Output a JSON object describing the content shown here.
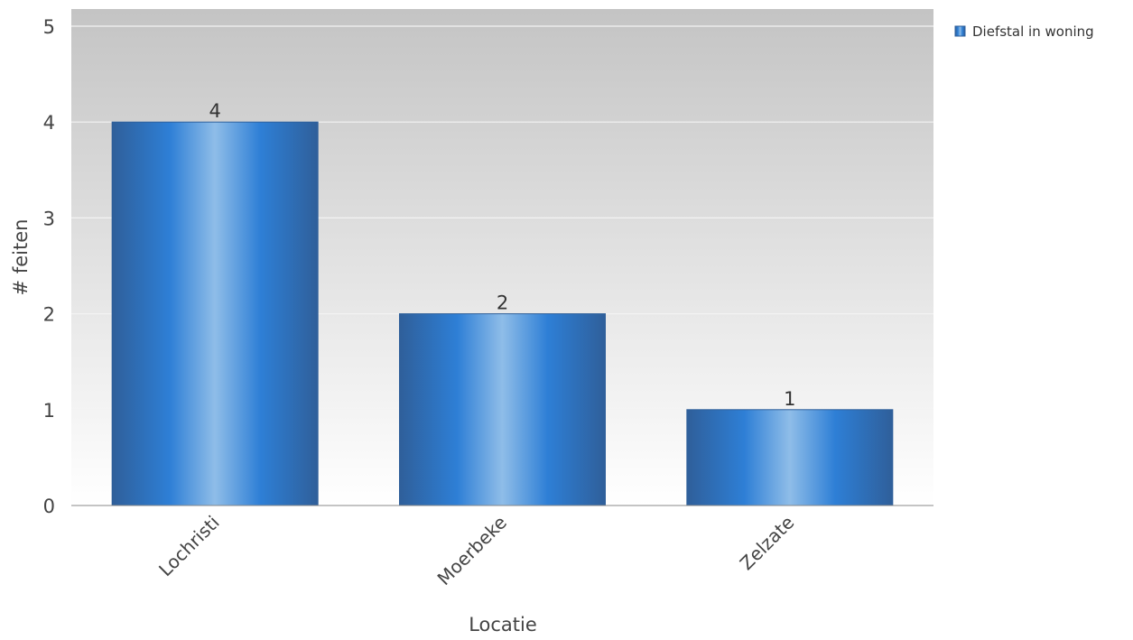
{
  "chart_data": {
    "type": "bar",
    "categories": [
      "Lochristi",
      "Moerbeke",
      "Zelzate"
    ],
    "series": [
      {
        "name": "Diefstal in woning",
        "values": [
          4,
          2,
          1
        ]
      }
    ],
    "xlabel": "Locatie",
    "ylabel": "# feiten",
    "ylim": [
      0,
      5
    ],
    "yticks": [
      0,
      1,
      2,
      3,
      4,
      5
    ],
    "grid": true,
    "legend_position": "top-right",
    "data_labels": true,
    "colors": {
      "bar": "#2e7fd6",
      "bar_highlight": "#8fbde8",
      "bar_edge": "#2f5f9a"
    }
  }
}
